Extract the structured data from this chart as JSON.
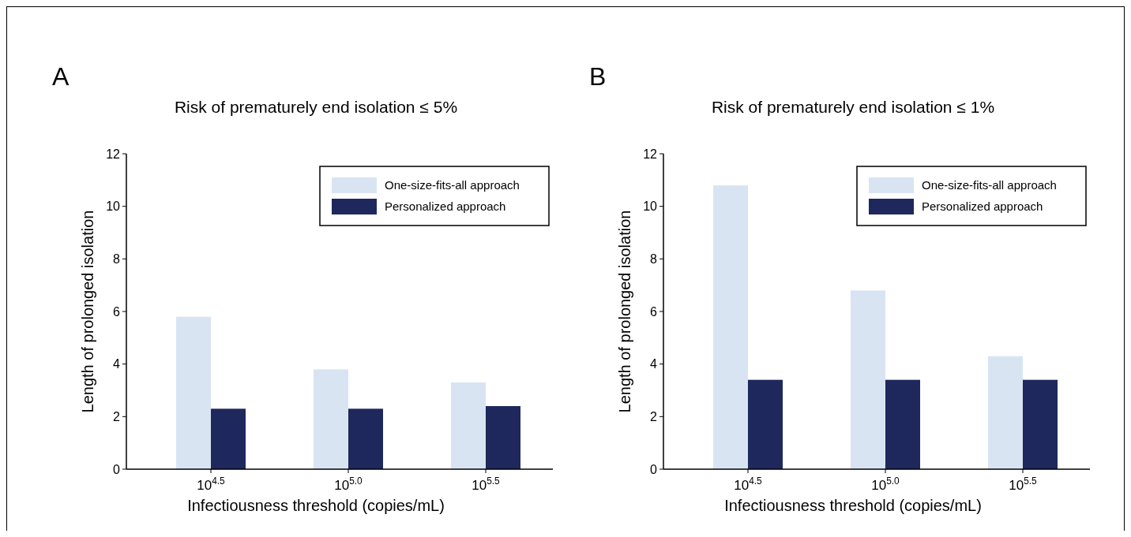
{
  "chart_data": [
    {
      "type": "bar",
      "title": "Risk of prematurely end isolation ≤ 5%",
      "annotations": [
        "A"
      ],
      "xlabel": "Infectiousness threshold (copies/mL)",
      "ylabel": "Length of prolonged isolation",
      "categories": [
        "10$^{4.5}$",
        "10$^{5.0}$",
        "10$^{5.5}$"
      ],
      "series": [
        {
          "name": "One-size-fits-all approach",
          "color": "#d9e4f3",
          "values": [
            5.8,
            3.8,
            3.3
          ]
        },
        {
          "name": "Personalized approach",
          "color": "#1f285c",
          "values": [
            2.3,
            2.3,
            2.4
          ]
        }
      ],
      "ylim": [
        0,
        12
      ],
      "yticks": [
        0,
        2,
        4,
        6,
        8,
        10,
        12
      ],
      "legend": "top right",
      "grid": false
    },
    {
      "type": "bar",
      "title": "Risk of prematurely end isolation ≤ 1%",
      "annotations": [
        "B"
      ],
      "xlabel": "Infectiousness threshold (copies/mL)",
      "ylabel": "Length of prolonged isolation",
      "categories": [
        "10$^{4.5}$",
        "10$^{5.0}$",
        "10$^{5.5}$"
      ],
      "series": [
        {
          "name": "One-size-fits-all approach",
          "color": "#d9e4f3",
          "values": [
            10.8,
            6.8,
            4.3
          ]
        },
        {
          "name": "Personalized approach",
          "color": "#1f285c",
          "values": [
            3.4,
            3.4,
            3.4
          ]
        }
      ],
      "ylim": [
        0,
        12
      ],
      "yticks": [
        0,
        2,
        4,
        6,
        8,
        10,
        12
      ],
      "legend": "top right",
      "grid": false
    }
  ]
}
